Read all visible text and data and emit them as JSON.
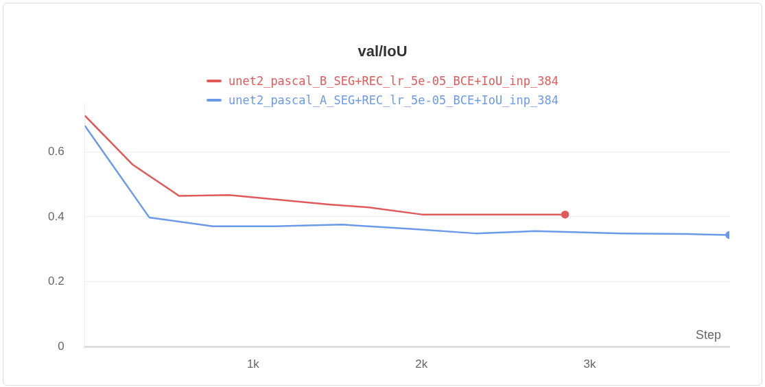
{
  "chart_data": {
    "type": "line",
    "title": "val/IoU",
    "xlabel": "Step",
    "series": [
      {
        "name": "unet2_pascal_B_SEG+REC_lr_5e-05_BCE+IoU_inp_384",
        "color": "#e05a5a",
        "x": [
          0,
          285,
          561,
          858,
          1450,
          1688,
          2004,
          2854
        ],
        "values": [
          0.711,
          0.56,
          0.464,
          0.467,
          0.438,
          0.429,
          0.407,
          0.407
        ]
      },
      {
        "name": "unet2_pascal_A_SEG+REC_lr_5e-05_BCE+IoU_inp_384",
        "color": "#6a9ae8",
        "x": [
          0,
          383,
          759,
          1134,
          1530,
          1964,
          2320,
          2676,
          3190,
          3585,
          3830
        ],
        "values": [
          0.68,
          0.398,
          0.371,
          0.371,
          0.376,
          0.362,
          0.349,
          0.356,
          0.349,
          0.347,
          0.344
        ]
      }
    ],
    "xlim": [
      0,
      3830
    ],
    "xticks": [
      {
        "value": 1000,
        "label": "1k"
      },
      {
        "value": 2000,
        "label": "2k"
      },
      {
        "value": 3000,
        "label": "3k"
      }
    ],
    "ylim": [
      0,
      0.75
    ],
    "yticks": [
      0,
      0.2,
      0.4,
      0.6
    ],
    "grid": "y",
    "legend": "top"
  }
}
